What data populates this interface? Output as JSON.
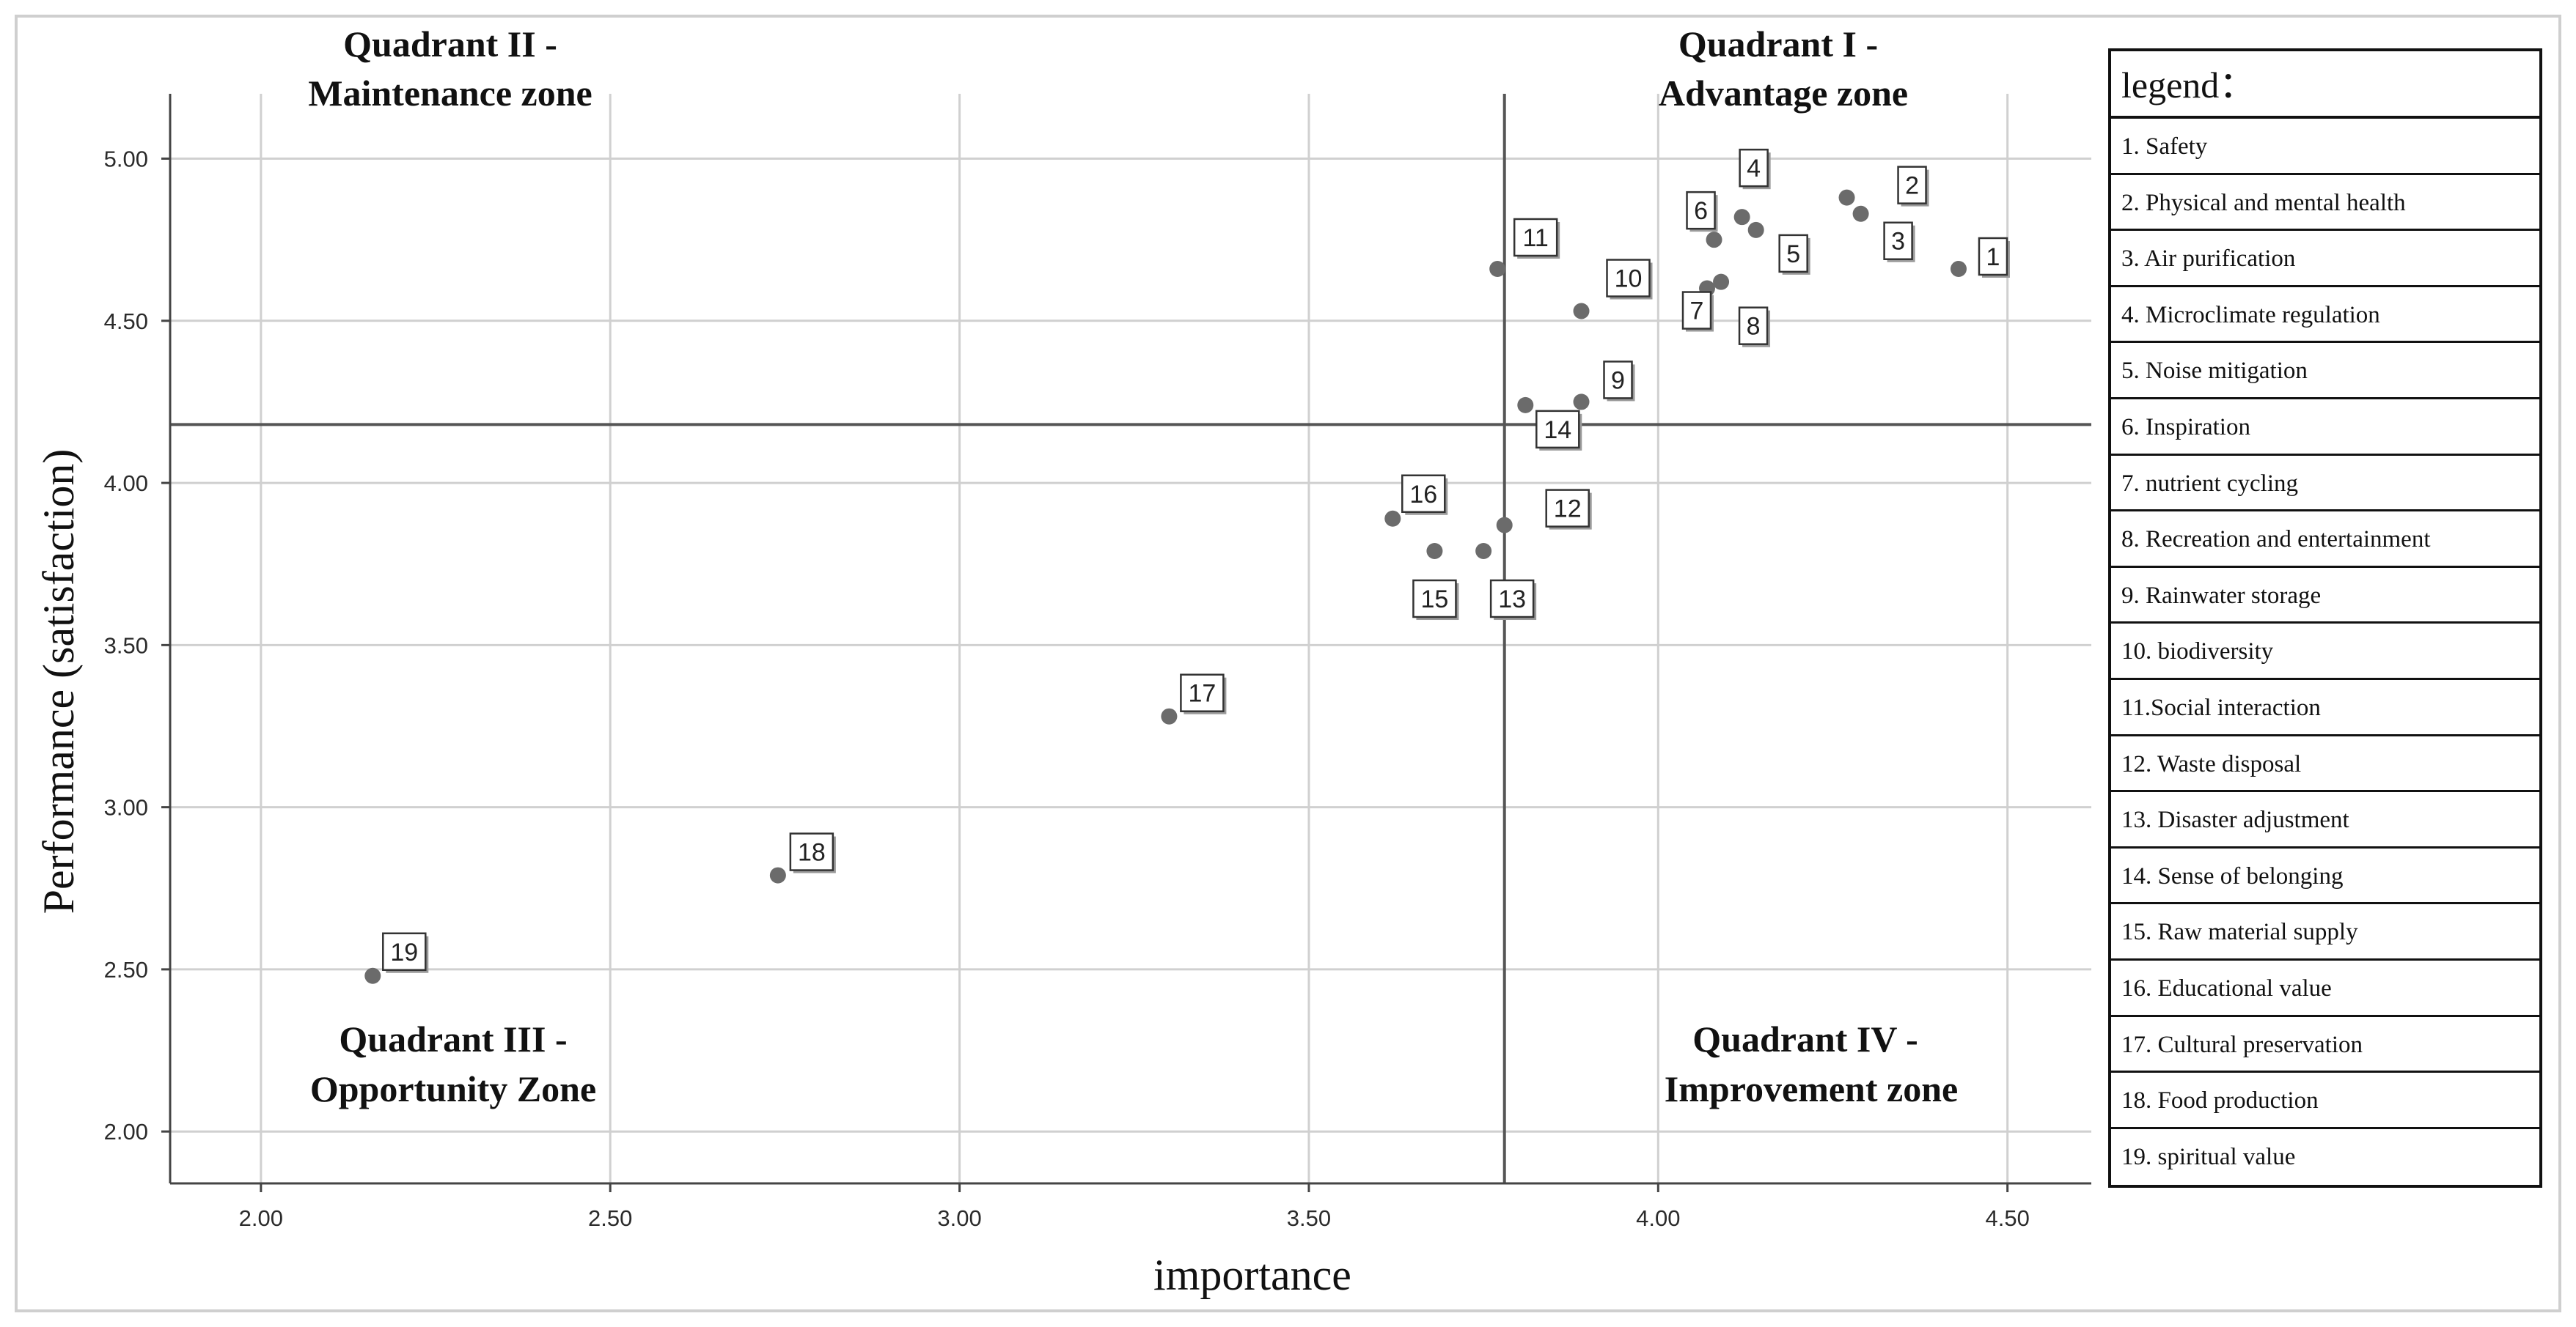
{
  "chart_data": {
    "type": "scatter",
    "xlabel": "importance",
    "ylabel": "Performance (satisfaction)",
    "xlim": [
      1.87,
      4.62
    ],
    "ylim": [
      1.84,
      5.2
    ],
    "x_ticks": [
      "2.00",
      "2.50",
      "3.00",
      "3.50",
      "4.00",
      "4.50"
    ],
    "x_tick_values": [
      2.0,
      2.5,
      3.0,
      3.5,
      4.0,
      4.5
    ],
    "y_ticks": [
      "5.00",
      "4.50",
      "4.00",
      "3.50",
      "3.00",
      "2.50",
      "2.00"
    ],
    "y_tick_values": [
      5.0,
      4.5,
      4.0,
      3.5,
      3.0,
      2.5,
      2.0
    ],
    "grid": true,
    "reference_lines": {
      "x": 3.78,
      "y": 4.18
    },
    "quadrants": [
      {
        "id": "q2",
        "line1": "Quadrant II -",
        "line2": "Maintenance zone"
      },
      {
        "id": "q1",
        "line1": "Quadrant I -",
        "line2": "Advantage zone"
      },
      {
        "id": "q3",
        "line1": "Quadrant III -",
        "line2": "Opportunity Zone"
      },
      {
        "id": "q4",
        "line1": "Quadrant IV -",
        "line2": "Improvement zone"
      }
    ],
    "points": [
      {
        "label": "1",
        "x": 4.43,
        "y": 4.66
      },
      {
        "label": "2",
        "x": 4.27,
        "y": 4.88
      },
      {
        "label": "3",
        "x": 4.29,
        "y": 4.83
      },
      {
        "label": "4",
        "x": 4.12,
        "y": 4.82
      },
      {
        "label": "5",
        "x": 4.14,
        "y": 4.78
      },
      {
        "label": "6",
        "x": 4.08,
        "y": 4.75
      },
      {
        "label": "7",
        "x": 4.07,
        "y": 4.6
      },
      {
        "label": "8",
        "x": 4.09,
        "y": 4.62
      },
      {
        "label": "9",
        "x": 3.89,
        "y": 4.25
      },
      {
        "label": "10",
        "x": 3.89,
        "y": 4.53
      },
      {
        "label": "11",
        "x": 3.77,
        "y": 4.66
      },
      {
        "label": "12",
        "x": 3.78,
        "y": 3.87
      },
      {
        "label": "13",
        "x": 3.75,
        "y": 3.79
      },
      {
        "label": "14",
        "x": 3.81,
        "y": 4.24
      },
      {
        "label": "15",
        "x": 3.68,
        "y": 3.79
      },
      {
        "label": "16",
        "x": 3.62,
        "y": 3.89
      },
      {
        "label": "17",
        "x": 3.3,
        "y": 3.28
      },
      {
        "label": "18",
        "x": 2.74,
        "y": 2.79
      },
      {
        "label": "19",
        "x": 2.16,
        "y": 2.48
      }
    ]
  },
  "legend": {
    "title": "legend：",
    "items": [
      "1. Safety",
      "2. Physical and mental health",
      "3. Air purification",
      "4. Microclimate regulation",
      "5. Noise mitigation",
      "6. Inspiration",
      "7. nutrient cycling",
      "8. Recreation and entertainment",
      "9. Rainwater storage",
      "10. biodiversity",
      "11.Social interaction",
      "12. Waste disposal",
      "13. Disaster adjustment",
      "14. Sense of belonging",
      "15. Raw material supply",
      "16. Educational value",
      "17. Cultural preservation",
      "18. Food production",
      "19. spiritual value"
    ]
  },
  "colors": {
    "point": "#6b6b6b",
    "grid": "#d0d0d0",
    "reference_line": "#555555",
    "axis": "#444444"
  }
}
